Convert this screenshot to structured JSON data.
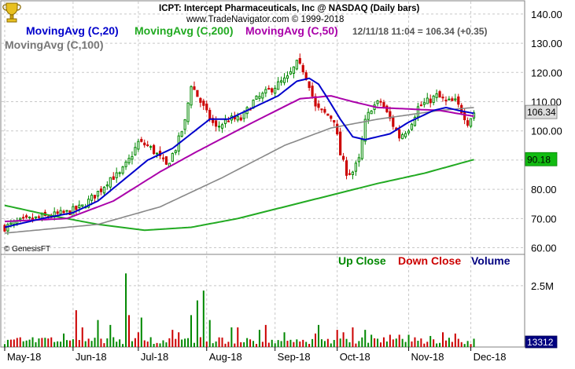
{
  "header": {
    "title": "ICPT:  Intercept Pharmaceuticals, Inc @ NASDAQ  (Daily bars)",
    "copyright": "www.TradeNavigator.com © 1999-2018",
    "timestamp_quote": "12/11/18 11:04 = 106.34 (+0.35)"
  },
  "legend": {
    "ma20": "MovingAvg (C,20)",
    "ma200": "MovingAvg (C,200)",
    "ma50": "MovingAvg (C,50)",
    "ma100": "MovingAvg (C,100)"
  },
  "volume_legend": {
    "up": "Up Close",
    "down": "Down Close",
    "volume": "Volume"
  },
  "watermark": "© GenesisFT",
  "colors": {
    "up": "#008800",
    "down": "#cc0000",
    "ma20": "#0000cc",
    "ma50": "#aa00aa",
    "ma100": "#888888",
    "ma200": "#22aa22",
    "volume_text": "#000080",
    "grid": "#c8c8c8"
  },
  "chart_data": {
    "type": "candlestick",
    "price_axis": {
      "ylim": [
        58,
        144
      ],
      "ticks": [
        "140.00",
        "130.00",
        "120.00",
        "110.00",
        "100.00",
        "90.00",
        "80.00",
        "70.00",
        "60.00"
      ],
      "tick_values": [
        140,
        130,
        120,
        110,
        100,
        90,
        80,
        70,
        60
      ]
    },
    "volume_axis": {
      "ylim": [
        0,
        3.2
      ],
      "ticks": [
        "2.5M"
      ],
      "tick_values": [
        2.5
      ]
    },
    "x_labels": [
      "May-18",
      "Jun-18",
      "Jul-18",
      "Aug-18",
      "Sep-18",
      "Oct-18",
      "Nov-18",
      "Dec-18"
    ],
    "x_label_days": [
      0,
      22,
      43,
      65,
      87,
      107,
      130,
      150
    ],
    "n_days": 162,
    "price_tag": {
      "label": "106.34",
      "value": 106.34
    },
    "ma200_tag": {
      "label": "90.18",
      "value": 90.18
    },
    "volume_tag": {
      "label": "13312",
      "value": 0.05
    },
    "close_anchors": [
      [
        0,
        67
      ],
      [
        5,
        69
      ],
      [
        10,
        70
      ],
      [
        15,
        71
      ],
      [
        20,
        72
      ],
      [
        25,
        74
      ],
      [
        28,
        77
      ],
      [
        31,
        80
      ],
      [
        34,
        84
      ],
      [
        37,
        85
      ],
      [
        40,
        90
      ],
      [
        43,
        96
      ],
      [
        46,
        95
      ],
      [
        49,
        92
      ],
      [
        52,
        88
      ],
      [
        55,
        94
      ],
      [
        58,
        103
      ],
      [
        60,
        116
      ],
      [
        62,
        112
      ],
      [
        65,
        106
      ],
      [
        68,
        101
      ],
      [
        72,
        104
      ],
      [
        76,
        104
      ],
      [
        80,
        110
      ],
      [
        84,
        113
      ],
      [
        88,
        116
      ],
      [
        91,
        118
      ],
      [
        94,
        123
      ],
      [
        96,
        121
      ],
      [
        98,
        116
      ],
      [
        100,
        108
      ],
      [
        103,
        106
      ],
      [
        106,
        104
      ],
      [
        108,
        92
      ],
      [
        110,
        86
      ],
      [
        112,
        86
      ],
      [
        114,
        90
      ],
      [
        116,
        103
      ],
      [
        118,
        108
      ],
      [
        121,
        110
      ],
      [
        124,
        104
      ],
      [
        127,
        98
      ],
      [
        130,
        101
      ],
      [
        133,
        108
      ],
      [
        136,
        110
      ],
      [
        139,
        112
      ],
      [
        142,
        110
      ],
      [
        145,
        110
      ],
      [
        147,
        107
      ],
      [
        149,
        103
      ],
      [
        151,
        106.34
      ]
    ],
    "ma20_anchors": [
      [
        0,
        67
      ],
      [
        12,
        70
      ],
      [
        22,
        72
      ],
      [
        30,
        76
      ],
      [
        38,
        83
      ],
      [
        46,
        90
      ],
      [
        54,
        94
      ],
      [
        60,
        99
      ],
      [
        66,
        104
      ],
      [
        72,
        104
      ],
      [
        80,
        108
      ],
      [
        88,
        112
      ],
      [
        94,
        117
      ],
      [
        98,
        118
      ],
      [
        101,
        116
      ],
      [
        104,
        111
      ],
      [
        108,
        104
      ],
      [
        112,
        98
      ],
      [
        116,
        97
      ],
      [
        120,
        98
      ],
      [
        124,
        99
      ],
      [
        127,
        101
      ],
      [
        130,
        103
      ],
      [
        134,
        105
      ],
      [
        138,
        107
      ],
      [
        142,
        108
      ],
      [
        146,
        107
      ],
      [
        151,
        106
      ]
    ],
    "ma50_anchors": [
      [
        0,
        69
      ],
      [
        20,
        70
      ],
      [
        35,
        76
      ],
      [
        50,
        86
      ],
      [
        62,
        93
      ],
      [
        80,
        103
      ],
      [
        95,
        111
      ],
      [
        105,
        112
      ],
      [
        112,
        110
      ],
      [
        120,
        108
      ],
      [
        130,
        107.5
      ],
      [
        140,
        107
      ],
      [
        151,
        105
      ]
    ],
    "ma100_anchors": [
      [
        0,
        65
      ],
      [
        30,
        68
      ],
      [
        50,
        74
      ],
      [
        70,
        84
      ],
      [
        90,
        95
      ],
      [
        105,
        101
      ],
      [
        120,
        104
      ],
      [
        140,
        107
      ],
      [
        151,
        108
      ]
    ],
    "ma200_anchors": [
      [
        0,
        74.5
      ],
      [
        15,
        71
      ],
      [
        30,
        68
      ],
      [
        45,
        66
      ],
      [
        60,
        67
      ],
      [
        75,
        70
      ],
      [
        90,
        74
      ],
      [
        105,
        78
      ],
      [
        120,
        82
      ],
      [
        135,
        85.5
      ],
      [
        151,
        90.18
      ]
    ],
    "volume_series": {
      "up_spikes": [
        [
          11,
          0.35
        ],
        [
          19,
          0.55
        ],
        [
          30,
          1.1
        ],
        [
          34,
          0.9
        ],
        [
          39,
          3.0
        ],
        [
          44,
          1.2
        ],
        [
          47,
          0.4
        ],
        [
          60,
          1.3
        ],
        [
          62,
          1.9
        ],
        [
          64,
          2.3
        ],
        [
          66,
          1.1
        ],
        [
          73,
          0.8
        ],
        [
          82,
          0.7
        ],
        [
          90,
          0.6
        ],
        [
          101,
          0.9
        ],
        [
          116,
          0.7
        ],
        [
          118,
          0.5
        ],
        [
          130,
          0.5
        ],
        [
          137,
          0.45
        ]
      ],
      "down_spikes": [
        [
          23,
          1.5
        ],
        [
          25,
          0.8
        ],
        [
          40,
          1.3
        ],
        [
          43,
          0.6
        ],
        [
          54,
          0.7
        ],
        [
          56,
          0.6
        ],
        [
          63,
          0.4
        ],
        [
          75,
          0.8
        ],
        [
          84,
          0.9
        ],
        [
          100,
          0.55
        ],
        [
          107,
          0.7
        ],
        [
          109,
          0.6
        ],
        [
          112,
          0.8
        ],
        [
          124,
          0.5
        ],
        [
          127,
          0.5
        ],
        [
          141,
          0.6
        ],
        [
          145,
          0.55
        ]
      ]
    }
  }
}
